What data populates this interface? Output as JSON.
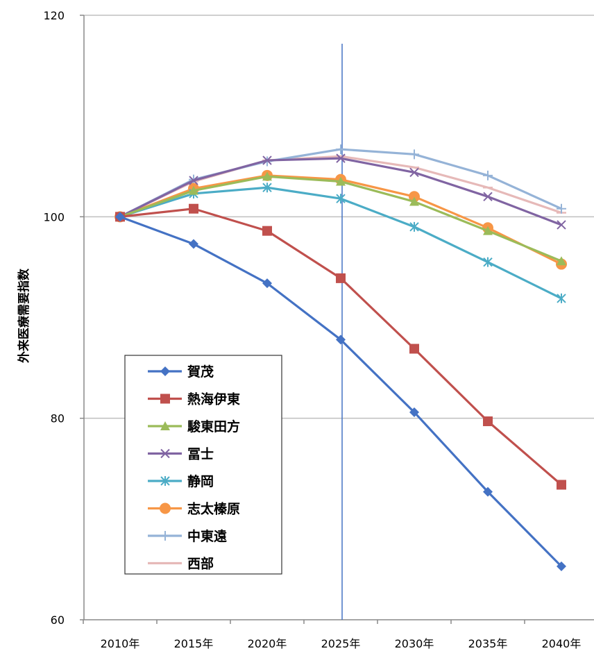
{
  "chart_data": {
    "type": "line",
    "title": "",
    "xlabel": "",
    "ylabel": "外来医療需要指数",
    "categories": [
      "2010年",
      "2015年",
      "2020年",
      "2025年",
      "2030年",
      "2035年",
      "2040年"
    ],
    "y_ticks": [
      "60",
      "80",
      "100",
      "120"
    ],
    "ylim": [
      60,
      120
    ],
    "grid": "horizontal",
    "reference_line": {
      "x": "2025年",
      "color": "#4472C4"
    },
    "legend_position": "lower-left",
    "series": [
      {
        "name": "賀茂",
        "color": "#4472C4",
        "marker": "diamond",
        "values": [
          100,
          97.3,
          93.4,
          87.8,
          80.6,
          72.7,
          65.3
        ]
      },
      {
        "name": "熱海伊東",
        "color": "#C0504D",
        "marker": "square",
        "values": [
          100,
          100.8,
          98.6,
          93.9,
          86.9,
          79.7,
          73.4
        ]
      },
      {
        "name": "駿東田方",
        "color": "#9BBB59",
        "marker": "triangle",
        "values": [
          100,
          102.6,
          104.0,
          103.5,
          101.5,
          98.6,
          95.6
        ]
      },
      {
        "name": "冨士",
        "color": "#8064A2",
        "marker": "x",
        "values": [
          100,
          103.6,
          105.6,
          105.8,
          104.4,
          102.0,
          99.2
        ]
      },
      {
        "name": "静岡",
        "color": "#4BACC6",
        "marker": "asterisk",
        "values": [
          100,
          102.3,
          102.9,
          101.8,
          99.0,
          95.5,
          91.9
        ]
      },
      {
        "name": "志太榛原",
        "color": "#F79646",
        "marker": "circle",
        "values": [
          100,
          102.8,
          104.1,
          103.7,
          102.0,
          98.9,
          95.3
        ]
      },
      {
        "name": "中東遠",
        "color": "#95B3D7",
        "marker": "plus",
        "values": [
          100,
          103.7,
          105.5,
          106.7,
          106.2,
          104.1,
          100.8
        ]
      },
      {
        "name": "西部",
        "color": "#E6B9B8",
        "marker": "dash",
        "values": [
          100,
          103.5,
          105.6,
          106.0,
          104.9,
          102.9,
          100.4
        ]
      }
    ]
  }
}
